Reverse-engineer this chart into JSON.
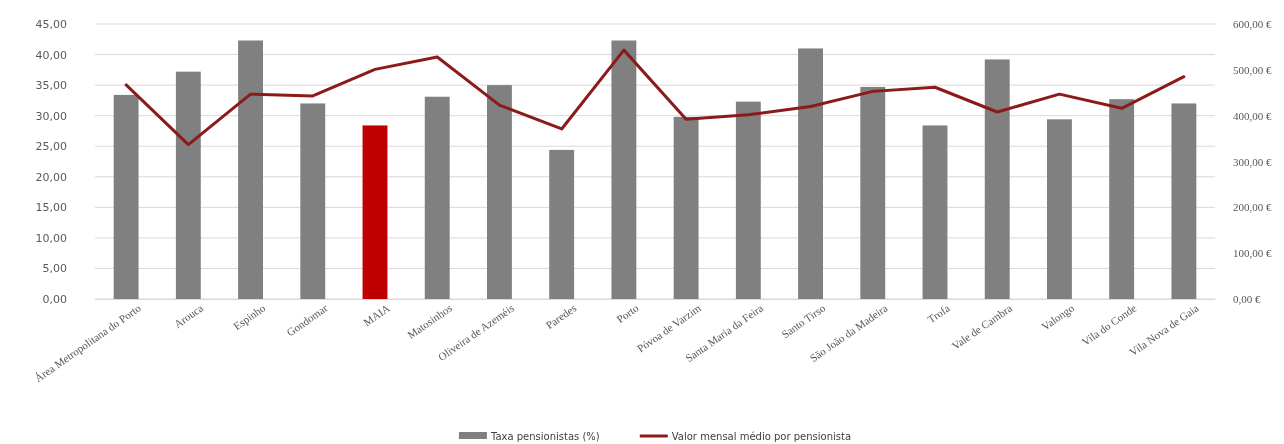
{
  "chart_data": {
    "type": "bar",
    "categories": [
      "Área Metropolitana do Porto",
      "Arouca",
      "Espinho",
      "Gondomar",
      "MAIA",
      "Matosinhos",
      "Oliveira de Azeméis",
      "Paredes",
      "Porto",
      "Póvoa de Varzim",
      "Santa Maria da Feira",
      "Santo Tirso",
      "São João da Madeira",
      "Trofa",
      "Vale de Cambra",
      "Valongo",
      "Vila do Conde",
      "Vila Nova de Gaia"
    ],
    "series": [
      {
        "name": "Taxa pensionistas (%)",
        "color": "#808080",
        "colors": [
          "#808080",
          "#808080",
          "#808080",
          "#808080",
          "#c00000",
          "#808080",
          "#808080",
          "#808080",
          "#808080",
          "#808080",
          "#808080",
          "#808080",
          "#808080",
          "#808080",
          "#808080",
          "#808080",
          "#808080",
          "#808080"
        ],
        "values": [
          33.4,
          37.2,
          42.3,
          32.0,
          28.4,
          33.1,
          35.0,
          24.4,
          42.3,
          29.8,
          32.3,
          41.0,
          34.7,
          28.4,
          39.2,
          29.4,
          32.7,
          32.0
        ]
      },
      {
        "name": "Valor mensal médio por pensionista",
        "type": "line",
        "axis": "y2",
        "color": "#8b1a1a",
        "values": [
          467,
          337,
          447,
          443,
          501,
          528,
          423,
          371,
          543,
          392,
          402,
          420,
          453,
          462,
          408,
          447,
          416,
          485
        ]
      }
    ],
    "ylim": [
      0,
      45
    ],
    "yticks": [
      {
        "value": 0,
        "label": "0,00"
      },
      {
        "value": 5,
        "label": "5,00"
      },
      {
        "value": 10,
        "label": "10,00"
      },
      {
        "value": 15,
        "label": "15,00"
      },
      {
        "value": 20,
        "label": "20,00"
      },
      {
        "value": 25,
        "label": "25,00"
      },
      {
        "value": 30,
        "label": "30,00"
      },
      {
        "value": 35,
        "label": "35,00"
      },
      {
        "value": 40,
        "label": "40,00"
      },
      {
        "value": 45,
        "label": "45,00"
      }
    ],
    "y2lim": [
      0,
      600
    ],
    "y2ticks": [
      {
        "value": 0,
        "label": "0,00 €"
      },
      {
        "value": 100,
        "label": "100,00 €"
      },
      {
        "value": 200,
        "label": "200,00 €"
      },
      {
        "value": 300,
        "label": "300,00 €"
      },
      {
        "value": 400,
        "label": "400,00 €"
      },
      {
        "value": 500,
        "label": "500,00 €"
      },
      {
        "value": 600,
        "label": "600,00 €"
      }
    ],
    "grid": "y",
    "legend": "bottom",
    "marker": "none",
    "line_style": "solid"
  }
}
